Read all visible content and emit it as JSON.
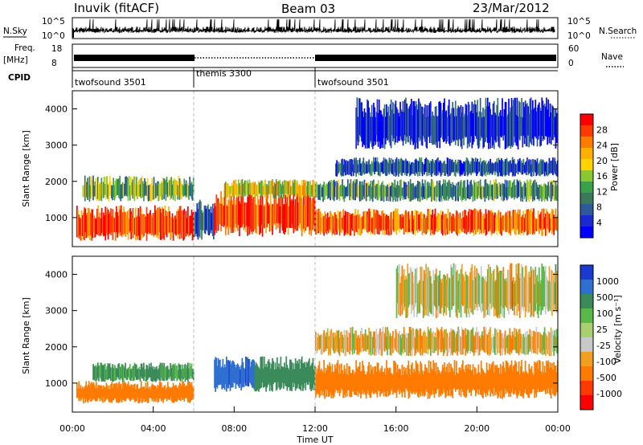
{
  "header": {
    "station": "Inuvik (fitACF)",
    "beam": "Beam 03",
    "date": "23/Mar/2012"
  },
  "strip_panels": {
    "nsky_label": "N.Sky",
    "nsky_left_ticks": [
      "10^5",
      "10^0"
    ],
    "nsearch_label": "N.Search",
    "nsearch_right_ticks": [
      "10^5",
      "10^0"
    ],
    "freq_label": "Freq.",
    "freq_unit": "[MHz]",
    "freq_ticks": [
      "18",
      "8"
    ],
    "nave_label": "Nave",
    "nave_ticks": [
      "60",
      "0"
    ],
    "cpid_label": "CPID",
    "cpid_segments": [
      {
        "name": "twofsound 3501",
        "start_hour": 0,
        "end_hour": 6
      },
      {
        "name": "themis 3300",
        "start_hour": 6,
        "end_hour": 12
      },
      {
        "name": "twofsound 3501",
        "start_hour": 12,
        "end_hour": 24
      }
    ]
  },
  "chart_data": [
    {
      "type": "heatmap",
      "panel": "power",
      "ylabel": "Slant Range [km]",
      "xlim_hours": [
        0,
        24
      ],
      "ylim": [
        200,
        4500
      ],
      "yticks": [
        1000,
        2000,
        3000,
        4000
      ],
      "colorbar": {
        "label": "Power [dB]",
        "ticks": [
          "28",
          "24",
          "20",
          "16",
          "12",
          "8",
          "4"
        ],
        "colors": [
          "#ff0000",
          "#ff3a00",
          "#ff7a00",
          "#ffb000",
          "#ffd200",
          "#8ac832",
          "#3aa04a",
          "#3a7a5a",
          "#2d5a9a",
          "#1a2ad0",
          "#0000ff"
        ]
      },
      "bands": [
        {
          "x0": 0.2,
          "x1": 6.0,
          "ymin": 300,
          "ymax": 1400,
          "value": 26
        },
        {
          "x0": 0.5,
          "x1": 6.0,
          "ymin": 1400,
          "ymax": 2200,
          "value": 14
        },
        {
          "x0": 6.0,
          "x1": 7.0,
          "ymin": 300,
          "ymax": 1600,
          "value": 10
        },
        {
          "x0": 7.0,
          "x1": 12.0,
          "ymin": 400,
          "ymax": 1900,
          "value": 26
        },
        {
          "x0": 7.5,
          "x1": 12.0,
          "ymin": 1500,
          "ymax": 2100,
          "value": 18
        },
        {
          "x0": 12.0,
          "x1": 24.0,
          "ymin": 450,
          "ymax": 1300,
          "value": 24
        },
        {
          "x0": 12.0,
          "x1": 24.0,
          "ymin": 1400,
          "ymax": 2100,
          "value": 12
        },
        {
          "x0": 13.0,
          "x1": 24.0,
          "ymin": 2100,
          "ymax": 2700,
          "value": 8
        },
        {
          "x0": 14.0,
          "x1": 24.0,
          "ymin": 2800,
          "ymax": 4400,
          "value": 6
        }
      ]
    },
    {
      "type": "heatmap",
      "panel": "velocity",
      "ylabel": "Slant Range [km]",
      "xlabel": "Time UT",
      "xlim_hours": [
        0,
        24
      ],
      "xticks": [
        "00:00",
        "04:00",
        "08:00",
        "12:00",
        "16:00",
        "20:00",
        "00:00"
      ],
      "ylim": [
        200,
        4500
      ],
      "yticks": [
        1000,
        2000,
        3000,
        4000
      ],
      "colorbar": {
        "label": "Velocity [m s⁻¹]",
        "ticks": [
          "1000",
          "500",
          "100",
          "25",
          "-25",
          "-100",
          "-500",
          "-1000"
        ],
        "colors": [
          "#1a3ad0",
          "#2f6fd0",
          "#3a8a5a",
          "#5ab84a",
          "#a8d070",
          "#c8c8c8",
          "#f0a020",
          "#ff7a00",
          "#ff3a00",
          "#ff0000"
        ]
      },
      "bands": [
        {
          "x0": 0.2,
          "x1": 6.0,
          "ymin": 400,
          "ymax": 1100,
          "value": -300
        },
        {
          "x0": 1.0,
          "x1": 6.0,
          "ymin": 1000,
          "ymax": 1600,
          "value": 150
        },
        {
          "x0": 7.0,
          "x1": 9.0,
          "ymin": 700,
          "ymax": 1800,
          "value": 900
        },
        {
          "x0": 9.0,
          "x1": 12.0,
          "ymin": 700,
          "ymax": 1800,
          "value": 300
        },
        {
          "x0": 12.0,
          "x1": 24.0,
          "ymin": 500,
          "ymax": 1700,
          "value": -300
        },
        {
          "x0": 12.0,
          "x1": 24.0,
          "ymin": 1700,
          "ymax": 2600,
          "value": -50
        },
        {
          "x0": 16.0,
          "x1": 24.0,
          "ymin": 2700,
          "ymax": 4400,
          "value": -20
        }
      ]
    }
  ]
}
